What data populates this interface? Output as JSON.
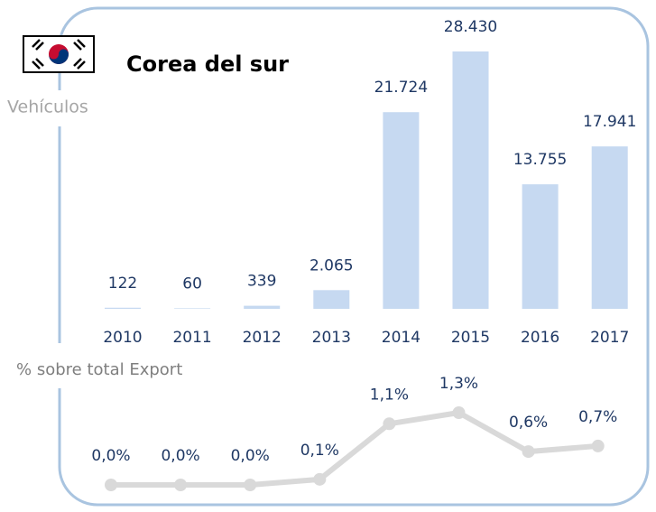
{
  "chart_data": [
    {
      "type": "bar",
      "title": "Corea del sur",
      "y_label": "Vehículos",
      "categories": [
        "2010",
        "2011",
        "2012",
        "2013",
        "2014",
        "2015",
        "2016",
        "2017"
      ],
      "values": [
        122,
        60,
        339,
        2065,
        21724,
        28430,
        13755,
        17941
      ],
      "value_labels": [
        "122",
        "60",
        "339",
        "2.065",
        "21.724",
        "28.430",
        "13.755",
        "17.941"
      ],
      "color": "#c6d9f1"
    },
    {
      "type": "line",
      "y_label": "% sobre total Export",
      "categories": [
        "2010",
        "2011",
        "2012",
        "2013",
        "2014",
        "2015",
        "2016",
        "2017"
      ],
      "values": [
        0.0,
        0.0,
        0.0,
        0.1,
        1.1,
        1.3,
        0.6,
        0.7
      ],
      "value_labels": [
        "0,0%",
        "0,0%",
        "0,0%",
        "0,1%",
        "1,1%",
        "1,3%",
        "0,6%",
        "0,7%"
      ],
      "color": "#d9d9d9"
    }
  ]
}
